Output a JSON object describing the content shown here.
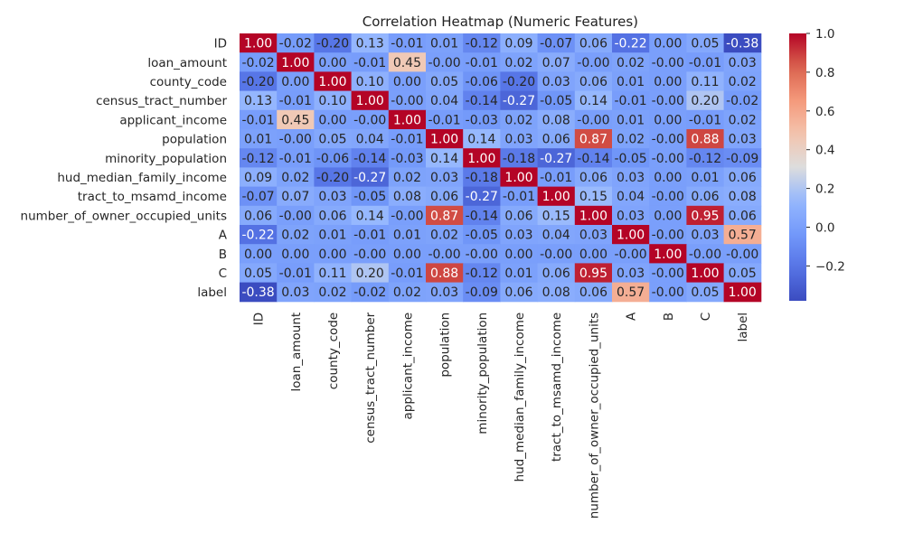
{
  "chart_data": {
    "type": "heatmap",
    "title": "Correlation Heatmap (Numeric Features)",
    "labels": [
      "ID",
      "loan_amount",
      "county_code",
      "census_tract_number",
      "applicant_income",
      "population",
      "minority_population",
      "hud_median_family_income",
      "tract_to_msamd_income",
      "number_of_owner_occupied_units",
      "A",
      "B",
      "C",
      "label"
    ],
    "values": [
      [
        "1.00",
        "-0.02",
        "-0.20",
        "0.13",
        "-0.01",
        "0.01",
        "-0.12",
        "0.09",
        "-0.07",
        "0.06",
        "-0.22",
        "0.00",
        "0.05",
        "-0.38"
      ],
      [
        "-0.02",
        "1.00",
        "0.00",
        "-0.01",
        "0.45",
        "-0.00",
        "-0.01",
        "0.02",
        "0.07",
        "-0.00",
        "0.02",
        "-0.00",
        "-0.01",
        "0.03"
      ],
      [
        "-0.20",
        "0.00",
        "1.00",
        "0.10",
        "0.00",
        "0.05",
        "-0.06",
        "-0.20",
        "0.03",
        "0.06",
        "0.01",
        "0.00",
        "0.11",
        "0.02"
      ],
      [
        "0.13",
        "-0.01",
        "0.10",
        "1.00",
        "-0.00",
        "0.04",
        "-0.14",
        "-0.27",
        "-0.05",
        "0.14",
        "-0.01",
        "-0.00",
        "0.20",
        "-0.02"
      ],
      [
        "-0.01",
        "0.45",
        "0.00",
        "-0.00",
        "1.00",
        "-0.01",
        "-0.03",
        "0.02",
        "0.08",
        "-0.00",
        "0.01",
        "0.00",
        "-0.01",
        "0.02"
      ],
      [
        "0.01",
        "-0.00",
        "0.05",
        "0.04",
        "-0.01",
        "1.00",
        "0.14",
        "0.03",
        "0.06",
        "0.87",
        "0.02",
        "-0.00",
        "0.88",
        "0.03"
      ],
      [
        "-0.12",
        "-0.01",
        "-0.06",
        "-0.14",
        "-0.03",
        "0.14",
        "1.00",
        "-0.18",
        "-0.27",
        "-0.14",
        "-0.05",
        "-0.00",
        "-0.12",
        "-0.09"
      ],
      [
        "0.09",
        "0.02",
        "-0.20",
        "-0.27",
        "0.02",
        "0.03",
        "-0.18",
        "1.00",
        "-0.01",
        "0.06",
        "0.03",
        "0.00",
        "0.01",
        "0.06"
      ],
      [
        "-0.07",
        "0.07",
        "0.03",
        "-0.05",
        "0.08",
        "0.06",
        "-0.27",
        "-0.01",
        "1.00",
        "0.15",
        "0.04",
        "-0.00",
        "0.06",
        "0.08"
      ],
      [
        "0.06",
        "-0.00",
        "0.06",
        "0.14",
        "-0.00",
        "0.87",
        "-0.14",
        "0.06",
        "0.15",
        "1.00",
        "0.03",
        "0.00",
        "0.95",
        "0.06"
      ],
      [
        "-0.22",
        "0.02",
        "0.01",
        "-0.01",
        "0.01",
        "0.02",
        "-0.05",
        "0.03",
        "0.04",
        "0.03",
        "1.00",
        "-0.00",
        "0.03",
        "0.57"
      ],
      [
        "0.00",
        "0.00",
        "0.00",
        "-0.00",
        "0.00",
        "-0.00",
        "-0.00",
        "0.00",
        "-0.00",
        "0.00",
        "-0.00",
        "1.00",
        "-0.00",
        "-0.00"
      ],
      [
        "0.05",
        "-0.01",
        "0.11",
        "0.20",
        "-0.01",
        "0.88",
        "-0.12",
        "0.01",
        "0.06",
        "0.95",
        "0.03",
        "-0.00",
        "1.00",
        "0.05"
      ],
      [
        "-0.38",
        "0.03",
        "0.02",
        "-0.02",
        "0.02",
        "0.03",
        "-0.09",
        "0.06",
        "0.08",
        "0.06",
        "0.57",
        "-0.00",
        "0.05",
        "1.00"
      ]
    ],
    "colormap": "coolwarm",
    "vmin": -0.38,
    "vmax": 1.0,
    "colorbar_ticks": [
      "1.0",
      "0.8",
      "0.6",
      "0.4",
      "0.2",
      "0.0",
      "−0.2"
    ],
    "colorbar_tick_values": [
      1.0,
      0.8,
      0.6,
      0.4,
      0.2,
      0.0,
      -0.2
    ],
    "legend_position": "right",
    "grid": false
  }
}
